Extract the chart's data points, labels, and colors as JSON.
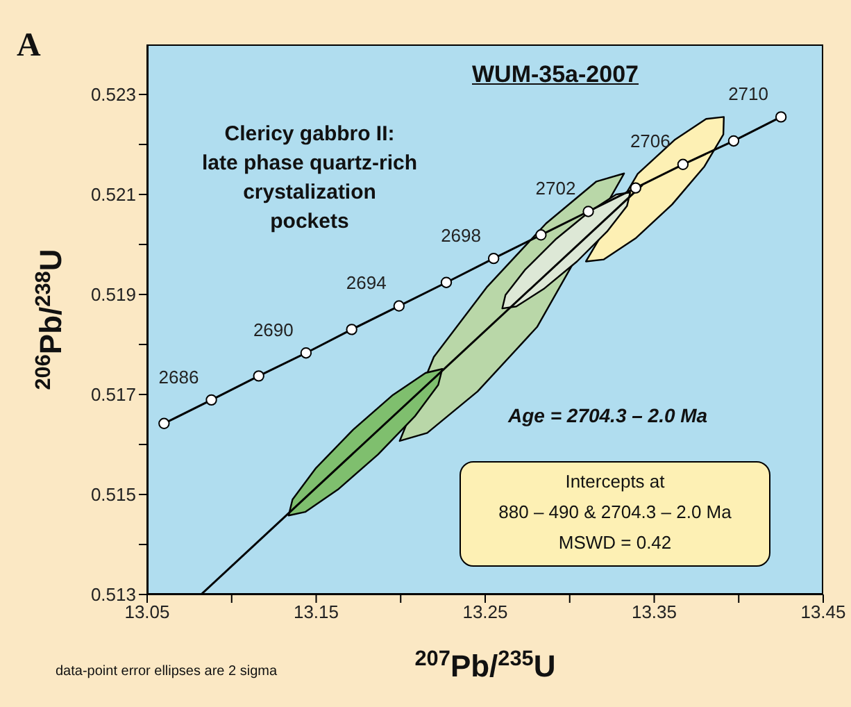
{
  "chart_data": {
    "type": "line",
    "title": "WUM-35a-2007",
    "xlabel": "$^{207}$Pb/$^{235}$U",
    "ylabel": "$^{206}$Pb/$^{238}$U",
    "xlim": [
      13.05,
      13.45
    ],
    "ylim": [
      0.513,
      0.524
    ],
    "xticks": [
      13.05,
      {
        "value": 13.1,
        "label": null
      },
      13.15,
      {
        "value": 13.2,
        "label": null
      },
      13.25,
      {
        "value": 13.3,
        "label": null
      },
      13.35,
      {
        "value": 13.4,
        "label": null
      },
      13.45
    ],
    "yticks": [
      0.513,
      {
        "value": 0.514,
        "label": null
      },
      0.515,
      {
        "value": 0.516,
        "label": null
      },
      0.517,
      {
        "value": 0.518,
        "label": null
      },
      0.519,
      {
        "value": 0.52,
        "label": null
      },
      0.521,
      {
        "value": 0.522,
        "label": null
      },
      0.523
    ],
    "annotations": [
      "A",
      "Clericy gabbro II:\nlate phase quartz-rich\ncrystalization\npockets",
      "Age = 2704.3 – 2.0 Ma",
      "Intercepts at\n880 – 490 & 2704.3 – 2.0 Ma\nMSWD  = 0.42",
      "data-point error ellipses are 2 sigma",
      {
        "text": "2686",
        "x": 13.088,
        "y": 0.51689
      },
      {
        "text": "2690",
        "x": 13.144,
        "y": 0.51783
      },
      {
        "text": "2694",
        "x": 13.199,
        "y": 0.51877
      },
      {
        "text": "2698",
        "x": 13.255,
        "y": 0.51972
      },
      {
        "text": "2702",
        "x": 13.311,
        "y": 0.52066
      },
      {
        "text": "2706",
        "x": 13.367,
        "y": 0.5216
      },
      {
        "text": "2710",
        "x": 13.425,
        "y": 0.52255
      }
    ],
    "series": [
      {
        "type": "area",
        "color": "#b9d7a8",
        "marker": "none",
        "x": [
          13.3322,
          13.3307,
          13.3119,
          13.2807,
          13.2455,
          13.2157,
          13.1994,
          13.2008,
          13.2196,
          13.2508,
          13.286,
          13.3158
        ],
        "values": [
          0.52142,
          null,
          null,
          0.51835,
          0.51706,
          0.51623,
          0.51607,
          null,
          0.51775,
          0.51914,
          0.52042,
          0.52126
        ]
      },
      {
        "type": "area",
        "color": "#7fbf6e",
        "marker": "none",
        "x": [
          13.2246,
          13.2222,
          13.2083,
          13.1866,
          13.1629,
          13.1435,
          13.1337,
          13.136,
          13.1499,
          13.1717,
          13.1954,
          13.2147
        ],
        "values": [
          0.51751,
          0.51719,
          0.51656,
          0.5158,
          0.5151,
          0.51465,
          0.51458,
          0.5149,
          0.51553,
          0.51629,
          0.51699,
          0.51743
        ]
      },
      {
        "type": "area",
        "color": "#fdf0b4",
        "marker": "none",
        "x": [
          13.3912,
          13.3909,
          13.3797,
          13.3606,
          13.3389,
          13.3202,
          13.3096,
          13.31,
          13.3211,
          13.3402,
          13.362,
          13.3807
        ],
        "values": [
          0.52255,
          0.5222,
          0.52156,
          0.5208,
          0.52012,
          0.5197,
          0.51966,
          null,
          null,
          0.52141,
          0.52209,
          0.52251
        ]
      },
      {
        "type": "area",
        "color": "#dde8d6",
        "marker": "none",
        "x": [
          13.3358,
          13.3339,
          13.3224,
          13.3043,
          13.2846,
          13.2684,
          13.2601,
          13.262,
          13.2735,
          13.2916,
          13.3114,
          13.3275
        ],
        "values": [
          0.52104,
          0.52077,
          0.52027,
          0.51966,
          0.51911,
          0.51876,
          0.51872,
          0.51899,
          0.51949,
          0.5201,
          0.52065,
          0.521
        ]
      },
      {
        "color": "#000000",
        "marker": "none",
        "x": [
          13.0819,
          13.343
        ],
        "values": [
          0.513,
          0.52119
        ]
      },
      {
        "color": "#000000",
        "marker": "circle",
        "x": [
          13.06,
          13.088,
          13.116,
          13.144,
          13.171,
          13.199,
          13.227,
          13.255,
          13.283,
          13.311,
          13.339,
          13.367,
          13.397,
          13.425
        ],
        "values": [
          0.51642,
          0.51689,
          0.51737,
          0.51783,
          0.5183,
          0.51877,
          0.51924,
          0.51972,
          0.52019,
          0.52066,
          0.52113,
          0.5216,
          0.52207,
          0.52255
        ]
      }
    ]
  }
}
